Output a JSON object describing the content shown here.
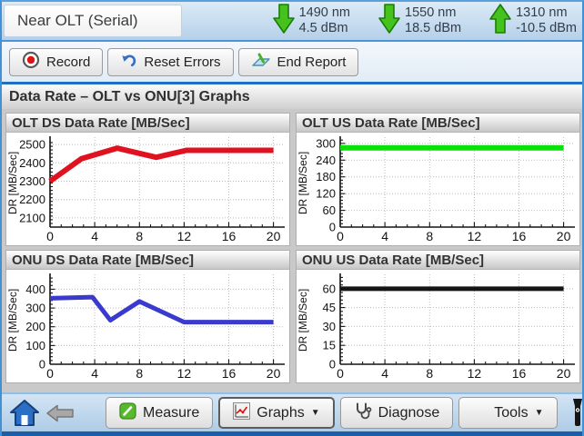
{
  "header": {
    "mode_label": "Near OLT (Serial)",
    "indicators": [
      {
        "wavelength": "1490 nm",
        "power": "4.5 dBm",
        "direction": "down"
      },
      {
        "wavelength": "1550 nm",
        "power": "18.5 dBm",
        "direction": "down"
      },
      {
        "wavelength": "1310 nm",
        "power": "-10.5 dBm",
        "direction": "up"
      }
    ]
  },
  "toolbar": {
    "record_label": "Record",
    "reset_errors_label": "Reset Errors",
    "end_report_label": "End Report"
  },
  "page_title": "Data Rate – OLT vs ONU[3] Graphs",
  "chart_data": [
    {
      "type": "line",
      "title": "OLT DS Data Rate [MB/Sec]",
      "ylabel": "DR [MB/Sec]",
      "color": "#e0121f",
      "line_width": 6,
      "xlim": [
        0,
        20.6
      ],
      "ylim": [
        2050,
        2530
      ],
      "xticks": [
        0,
        4,
        8,
        12,
        16,
        20
      ],
      "yticks": [
        2100,
        2200,
        2300,
        2400,
        2500
      ],
      "points": [
        [
          0,
          2300
        ],
        [
          2.8,
          2422
        ],
        [
          6,
          2480
        ],
        [
          9.5,
          2430
        ],
        [
          12.2,
          2468
        ],
        [
          20,
          2468
        ]
      ]
    },
    {
      "type": "line",
      "title": "OLT US Data Rate [MB/Sec]",
      "ylabel": "DR [MB/Sec]",
      "color": "#0ae10a",
      "line_width": 6,
      "xlim": [
        0,
        20.6
      ],
      "ylim": [
        0,
        316
      ],
      "xticks": [
        0,
        4,
        8,
        12,
        16,
        20
      ],
      "yticks": [
        0,
        60,
        120,
        180,
        240,
        300
      ],
      "points": [
        [
          0,
          284
        ],
        [
          20,
          284
        ]
      ]
    },
    {
      "type": "line",
      "title": "ONU DS Data Rate [MB/Sec]",
      "ylabel": "DR [MB/Sec]",
      "color": "#3a3ace",
      "line_width": 5,
      "xlim": [
        0,
        20.6
      ],
      "ylim": [
        0,
        470
      ],
      "xticks": [
        0,
        4,
        8,
        12,
        16,
        20
      ],
      "yticks": [
        0,
        100,
        200,
        300,
        400
      ],
      "points": [
        [
          0,
          352
        ],
        [
          3.8,
          358
        ],
        [
          5.4,
          235
        ],
        [
          8,
          335
        ],
        [
          12,
          225
        ],
        [
          20,
          225
        ]
      ]
    },
    {
      "type": "line",
      "title": "ONU US Data Rate [MB/Sec]",
      "ylabel": "DR [MB/Sec]",
      "color": "#151515",
      "line_width": 5,
      "xlim": [
        0,
        20.6
      ],
      "ylim": [
        0,
        70
      ],
      "xticks": [
        0,
        4,
        8,
        12,
        16,
        20
      ],
      "yticks": [
        0,
        15,
        30,
        45,
        60
      ],
      "points": [
        [
          0,
          60
        ],
        [
          20,
          60
        ]
      ]
    }
  ],
  "bottom_bar": {
    "measure_label": "Measure",
    "graphs_label": "Graphs",
    "graphs_arrow": "▼",
    "diagnose_label": "Diagnose",
    "tools_label": "Tools",
    "tools_arrow": "▼"
  }
}
